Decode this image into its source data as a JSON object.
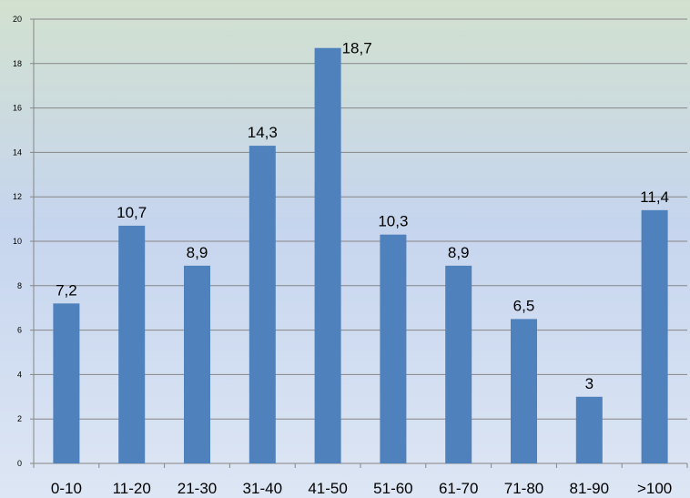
{
  "chart_data": {
    "type": "bar",
    "categories": [
      "0-10",
      "11-20",
      "21-30",
      "31-40",
      "41-50",
      "51-60",
      "61-70",
      "71-80",
      "81-90",
      ">100"
    ],
    "values": [
      7.2,
      10.7,
      8.9,
      14.3,
      18.7,
      10.3,
      8.9,
      6.5,
      3,
      11.4
    ],
    "value_labels": [
      "7,2",
      "10,7",
      "8,9",
      "14,3",
      "18,7",
      "10,3",
      "8,9",
      "6,5",
      "3",
      "11,4"
    ],
    "ylim": [
      0,
      20
    ],
    "yticks": [
      0,
      2,
      4,
      6,
      8,
      10,
      12,
      14,
      16,
      18,
      20
    ],
    "grid": true,
    "title": "",
    "xlabel": "",
    "ylabel": "",
    "colors": {
      "bar": "#4f81bd",
      "gridline": "#868686",
      "background_top": "#d2e1cf",
      "background_bottom": "#dde6f4"
    }
  }
}
